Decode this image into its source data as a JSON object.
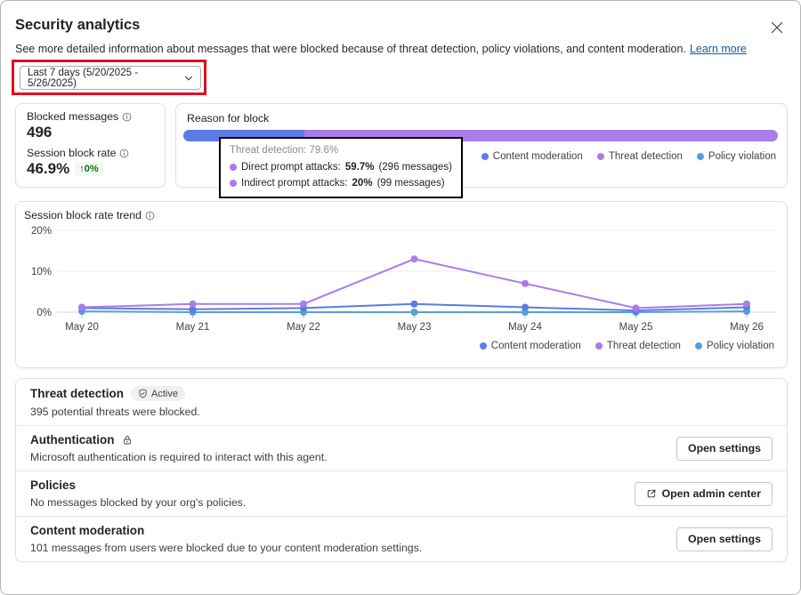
{
  "colors": {
    "content_moderation": "#5B7CE4",
    "threat_detection": "#A97CE8",
    "policy_violation": "#55A0D8",
    "annotation_red": "#E01020",
    "link": "#115EA3",
    "positive_green": "#0E700E",
    "positive_green_bg": "#F1FAF1"
  },
  "header": {
    "title": "Security analytics",
    "description": "See more detailed information about messages that were blocked because of threat detection, policy violations, and content moderation.",
    "learn_more_label": "Learn more"
  },
  "date_filter": {
    "value": "Last 7 days (5/20/2025 - 5/26/2025)"
  },
  "stats": {
    "blocked_messages_label": "Blocked messages",
    "blocked_messages_value": "496",
    "session_block_rate_label": "Session block rate",
    "session_block_rate_value": "46.9%",
    "session_block_rate_delta": "0%"
  },
  "legend": [
    {
      "label": "Content moderation",
      "color_key": "content_moderation"
    },
    {
      "label": "Threat detection",
      "color_key": "threat_detection"
    },
    {
      "label": "Policy violation",
      "color_key": "policy_violation"
    }
  ],
  "reason_tooltip": {
    "title": "Threat detection: 79.6%",
    "rows": [
      {
        "label": "Direct prompt attacks:",
        "value": "59.7%",
        "suffix": "(296 messages)"
      },
      {
        "label": "Indirect prompt attacks:",
        "value": "20%",
        "suffix": "(99 messages)"
      }
    ]
  },
  "chart_data": [
    {
      "type": "bar",
      "title": "Reason for block",
      "stacked": true,
      "unit": "%",
      "segments": [
        {
          "name": "Content moderation",
          "percent": 20.4,
          "color_key": "content_moderation"
        },
        {
          "name": "Threat detection",
          "percent": 79.6,
          "color_key": "threat_detection"
        },
        {
          "name": "Policy violation",
          "percent": 0,
          "color_key": "policy_violation"
        }
      ]
    },
    {
      "type": "line",
      "title": "Session block rate trend",
      "categories": [
        "May 20",
        "May 21",
        "May 22",
        "May 23",
        "May 24",
        "May 25",
        "May 26"
      ],
      "yticks": [
        0,
        10,
        20
      ],
      "ylim": [
        0,
        20
      ],
      "unit": "%",
      "grid": true,
      "legend_position": "bottom-right",
      "series": [
        {
          "name": "Policy violation",
          "color_key": "policy_violation",
          "values": [
            0.2,
            0,
            0,
            0,
            0,
            0,
            0.2
          ]
        },
        {
          "name": "Content moderation",
          "color_key": "content_moderation",
          "values": [
            1,
            0.7,
            1,
            2,
            1.2,
            0.4,
            1.2
          ]
        },
        {
          "name": "Threat detection",
          "color_key": "threat_detection",
          "values": [
            1.2,
            2,
            2,
            13,
            7,
            1,
            2
          ]
        }
      ]
    }
  ],
  "sections": [
    {
      "title": "Threat detection",
      "badge": "Active",
      "body": "395 potential threats were blocked."
    },
    {
      "title": "Authentication",
      "body": "Microsoft authentication is required to interact with this agent.",
      "button": "Open settings"
    },
    {
      "title": "Policies",
      "body": "No messages blocked by your org's policies.",
      "button": "Open admin center"
    },
    {
      "title": "Content moderation",
      "body": "101 messages from users were blocked due to your content moderation settings.",
      "button": "Open settings"
    }
  ]
}
